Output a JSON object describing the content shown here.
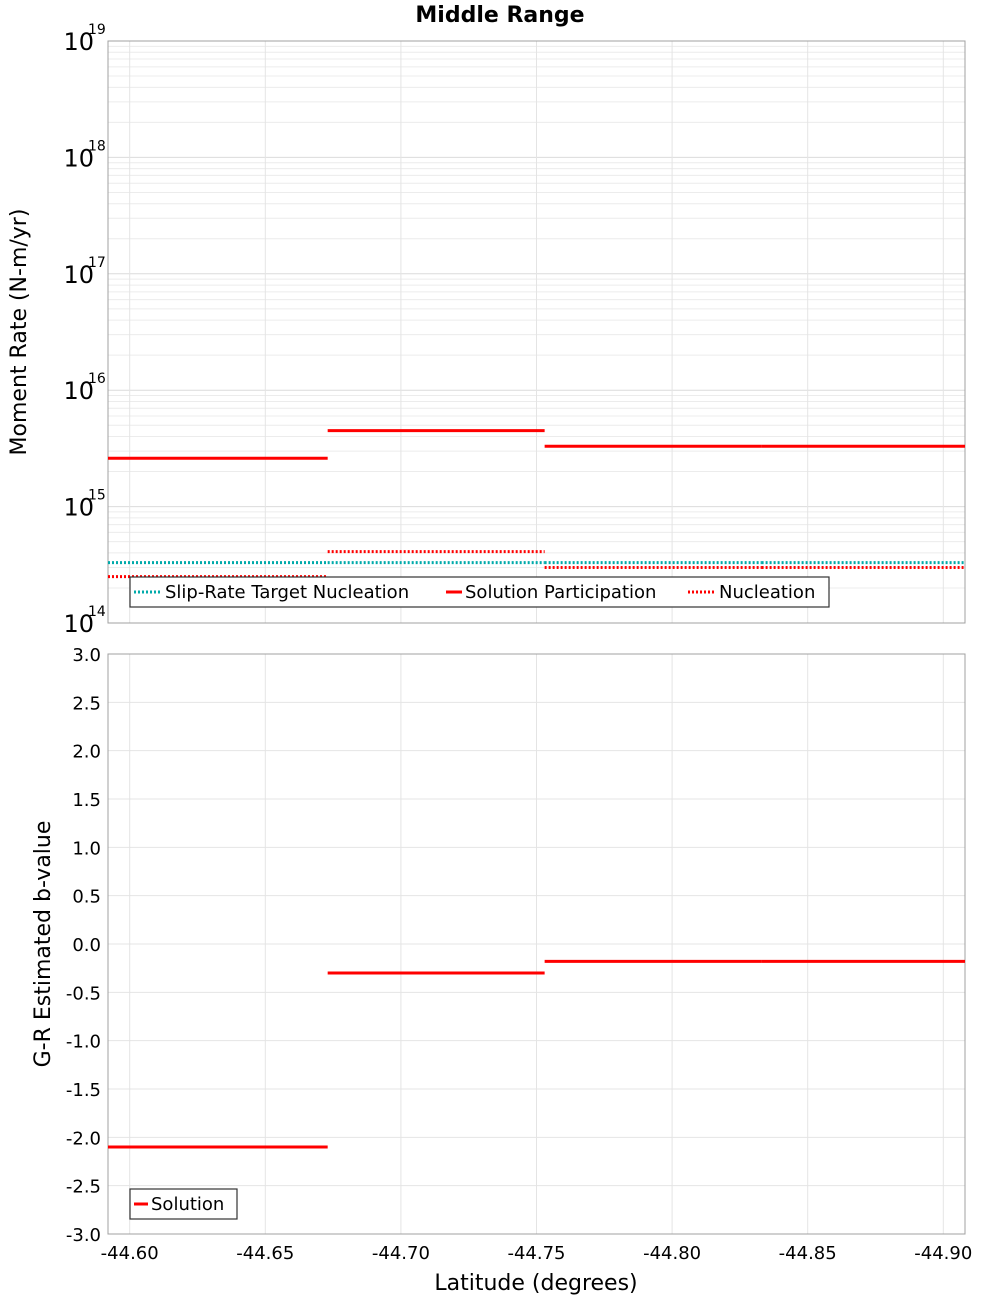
{
  "chart_data": [
    {
      "type": "line",
      "title": "Middle Range",
      "xlabel": "",
      "ylabel": "Moment Rate (N-m/yr)",
      "yscale": "log",
      "ylim_exponents": [
        14,
        19
      ],
      "xlim": [
        -44.592,
        -44.908
      ],
      "y_tick_base": "10",
      "y_tick_exponents": [
        "14",
        "15",
        "16",
        "17",
        "18",
        "19"
      ],
      "legend": {
        "placement": "bottom-left",
        "entries": [
          "Slip-Rate Target Nucleation",
          "Solution Participation",
          "Nucleation"
        ]
      },
      "series": [
        {
          "name": "Slip-Rate Target Nucleation",
          "color": "#00aaaa",
          "style": "dotted",
          "segments": [
            {
              "x0": -44.592,
              "x1": -44.673,
              "y": 330000000000000.0
            },
            {
              "x0": -44.673,
              "x1": -44.753,
              "y": 330000000000000.0
            },
            {
              "x0": -44.753,
              "x1": -44.833,
              "y": 330000000000000.0
            },
            {
              "x0": -44.833,
              "x1": -44.908,
              "y": 330000000000000.0
            }
          ]
        },
        {
          "name": "Solution Participation",
          "color": "#ff0000",
          "style": "solid",
          "segments": [
            {
              "x0": -44.592,
              "x1": -44.673,
              "y": 2600000000000000.0
            },
            {
              "x0": -44.673,
              "x1": -44.753,
              "y": 4500000000000000.0
            },
            {
              "x0": -44.753,
              "x1": -44.833,
              "y": 3300000000000000.0
            },
            {
              "x0": -44.833,
              "x1": -44.908,
              "y": 3300000000000000.0
            }
          ]
        },
        {
          "name": "Nucleation",
          "color": "#ff0000",
          "style": "dotted",
          "segments": [
            {
              "x0": -44.592,
              "x1": -44.673,
              "y": 250000000000000.0
            },
            {
              "x0": -44.673,
              "x1": -44.753,
              "y": 410000000000000.0
            },
            {
              "x0": -44.753,
              "x1": -44.833,
              "y": 300000000000000.0
            },
            {
              "x0": -44.833,
              "x1": -44.908,
              "y": 300000000000000.0
            }
          ]
        }
      ]
    },
    {
      "type": "line",
      "title": "",
      "xlabel": "Latitude (degrees)",
      "ylabel": "G-R Estimated b-value",
      "ylim": [
        -3.0,
        3.0
      ],
      "xlim": [
        -44.592,
        -44.908
      ],
      "y_ticks": [
        "3.0",
        "2.5",
        "2.0",
        "1.5",
        "1.0",
        "0.5",
        "0.0",
        "-0.5",
        "-1.0",
        "-1.5",
        "-2.0",
        "-2.5",
        "-3.0"
      ],
      "x_ticks": [
        "-44.60",
        "-44.65",
        "-44.70",
        "-44.75",
        "-44.80",
        "-44.85",
        "-44.90"
      ],
      "legend": {
        "placement": "bottom-left",
        "entries": [
          "Solution"
        ]
      },
      "series": [
        {
          "name": "Solution",
          "color": "#ff0000",
          "style": "solid",
          "segments": [
            {
              "x0": -44.592,
              "x1": -44.673,
              "y": -2.1
            },
            {
              "x0": -44.673,
              "x1": -44.753,
              "y": -0.3
            },
            {
              "x0": -44.753,
              "x1": -44.833,
              "y": -0.18
            },
            {
              "x0": -44.833,
              "x1": -44.908,
              "y": -0.18
            }
          ]
        }
      ]
    }
  ]
}
